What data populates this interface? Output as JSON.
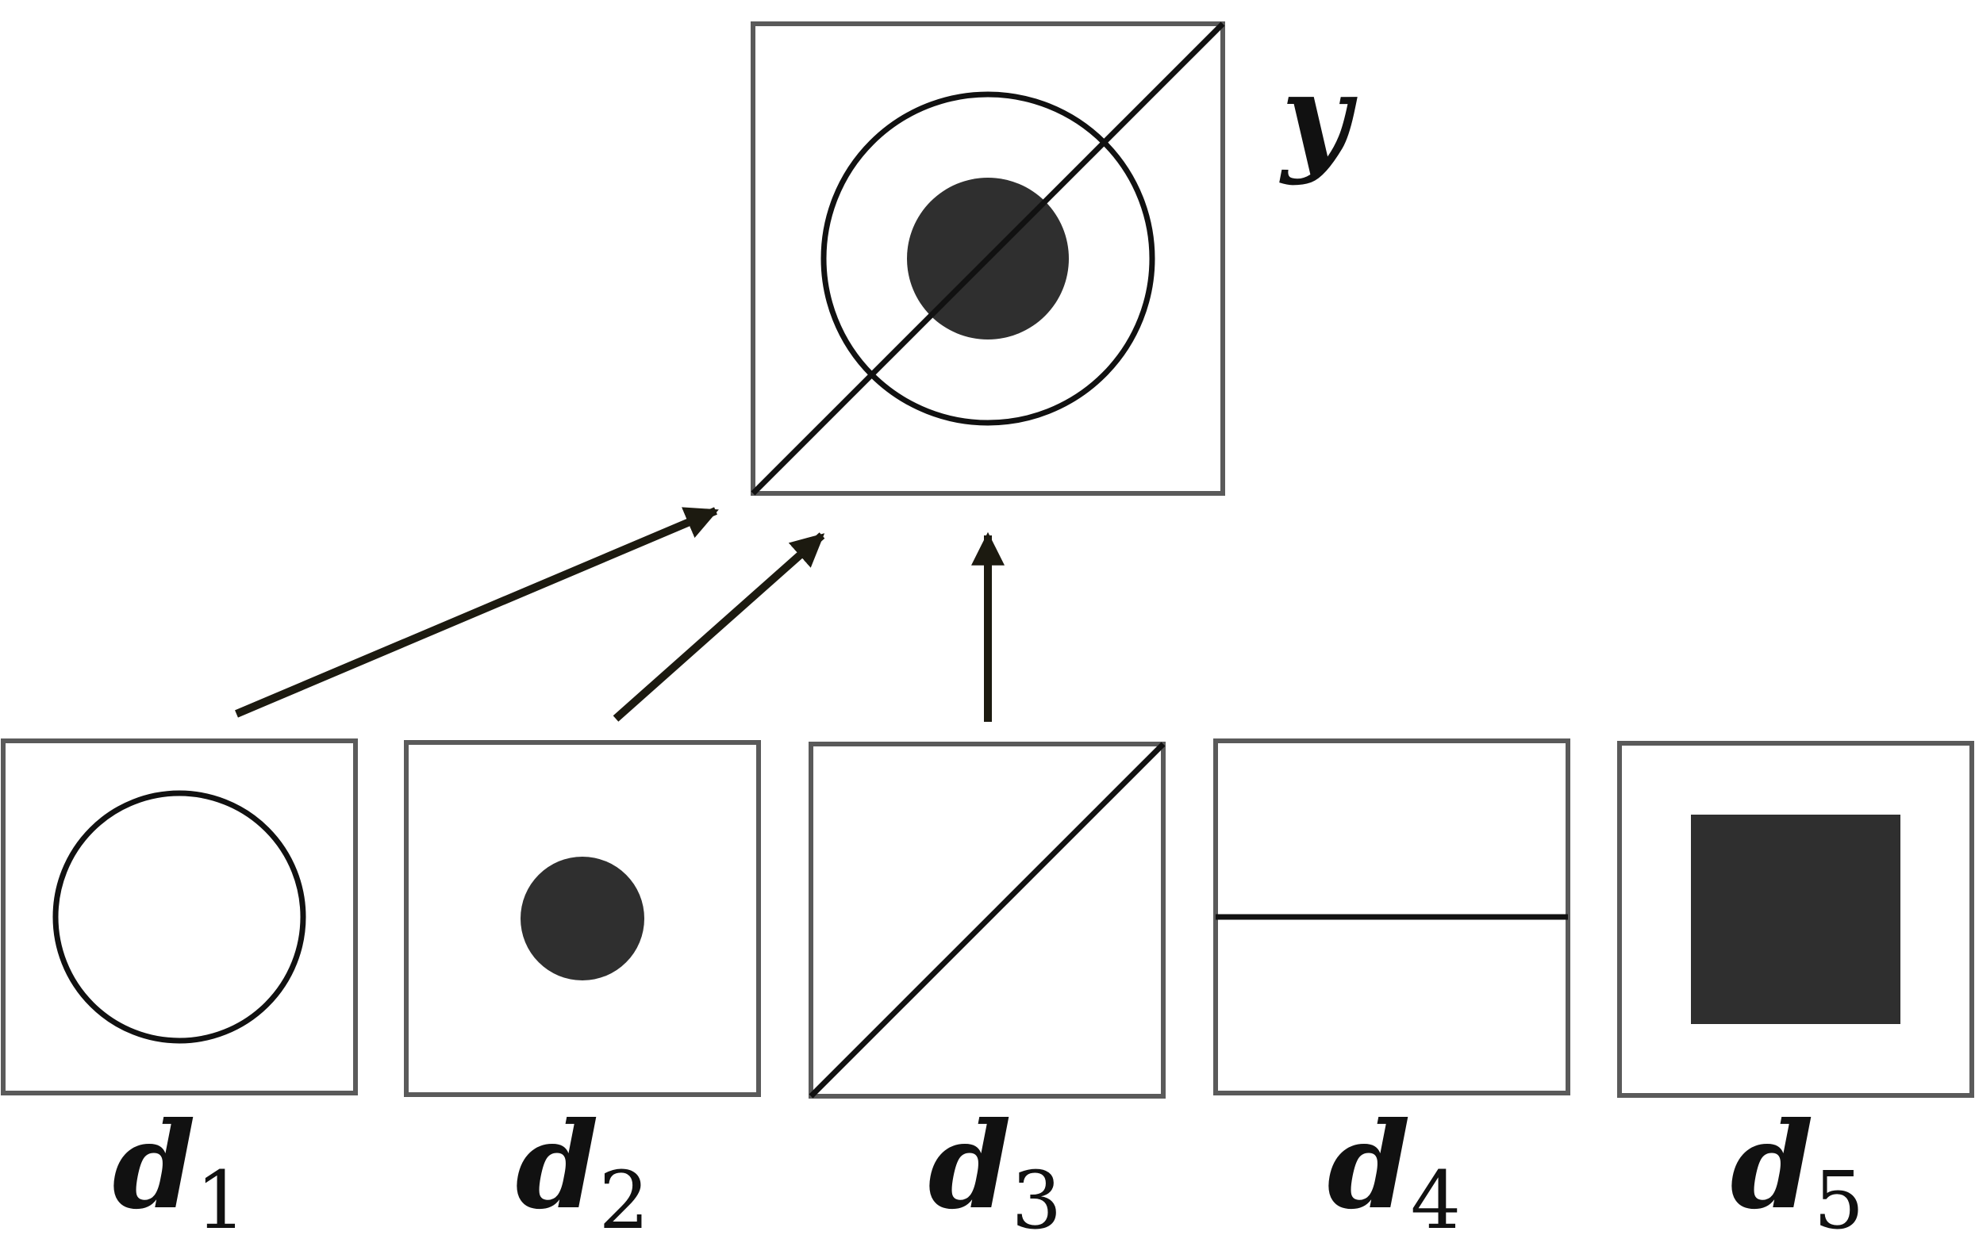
{
  "colors": {
    "frame": "#5a5a5a",
    "ink": "#111111",
    "fill": "#2f2f2f",
    "arrow": "#1c1a10"
  },
  "combined": {
    "label": "y",
    "shapes": [
      "outline-circle",
      "filled-dot",
      "diagonal-line"
    ]
  },
  "components": [
    {
      "var": "d",
      "sub": "1",
      "shape": "outline-circle"
    },
    {
      "var": "d",
      "sub": "2",
      "shape": "filled-dot"
    },
    {
      "var": "d",
      "sub": "3",
      "shape": "diagonal-line"
    },
    {
      "var": "d",
      "sub": "4",
      "shape": "horizontal-line"
    },
    {
      "var": "d",
      "sub": "5",
      "shape": "filled-square"
    }
  ],
  "arrows": [
    {
      "from": "d1",
      "to": "y"
    },
    {
      "from": "d2",
      "to": "y"
    },
    {
      "from": "d3",
      "to": "y"
    }
  ]
}
